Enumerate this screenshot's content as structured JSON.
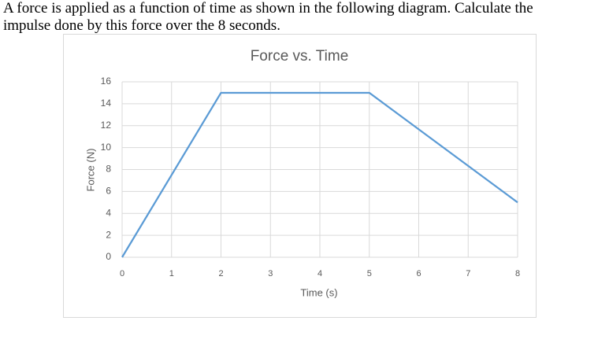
{
  "question": [
    "A force is applied as a function of time as shown in the following diagram.  Calculate the",
    "impulse done by this force over the 8 seconds."
  ],
  "chart_data": {
    "type": "line",
    "title": "Force vs. Time",
    "x_label": "Time (s)",
    "y_label": "Force (N)",
    "x": [
      0,
      2,
      5,
      8
    ],
    "series": [
      {
        "name": "Force",
        "color": "#5b9bd5",
        "values": [
          0,
          15,
          15,
          5
        ]
      }
    ],
    "xlim": [
      0,
      8
    ],
    "xticks": [
      0,
      1,
      2,
      3,
      4,
      5,
      6,
      7,
      8
    ],
    "ylim": [
      0,
      16
    ],
    "yticks": [
      0,
      2,
      4,
      6,
      8,
      10,
      12,
      14,
      16
    ],
    "grid": true
  }
}
